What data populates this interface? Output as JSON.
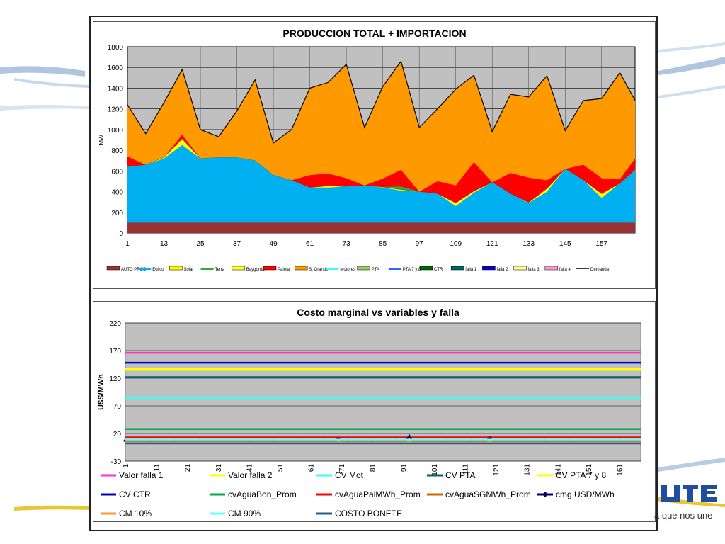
{
  "colors": {
    "auto_prod": "#993333",
    "eolico": "#00b0f0",
    "solar": "#ffff00",
    "terra": "#33aa33",
    "baygorria": "#ffff33",
    "palmar": "#ff0000",
    "s_grande": "#ff9900",
    "plot_bg": "#c0c0c0",
    "valor_falla_1": "#ff33cc",
    "valor_falla_2": "#ffff00",
    "cv_mot": "#33ffff",
    "cv_pta": "#006666",
    "cv_pta_7_8": "#ffff00",
    "cv_ctr": "#0000cc",
    "cvagua_bon": "#00aa44",
    "cvagua_pal": "#ff0000",
    "cvagua_sg": "#cc6600",
    "cmg": "#000066",
    "cm10": "#ff9933",
    "cm90": "#66ffff",
    "costo_bonete": "#1f5f99"
  },
  "brand": {
    "tagline": "a que nos une"
  },
  "chart_data": [
    {
      "type": "area",
      "title": "PRODUCCION TOTAL + IMPORTACION",
      "xlabel": "",
      "ylabel": "MW",
      "xlim": [
        1,
        168
      ],
      "ylim": [
        0,
        1800
      ],
      "yticks": [
        "0",
        "200",
        "400",
        "600",
        "800",
        "1000",
        "1200",
        "1400",
        "1600",
        "1800"
      ],
      "xticks": [
        "1",
        "13",
        "25",
        "37",
        "49",
        "61",
        "73",
        "85",
        "97",
        "109",
        "121",
        "133",
        "145",
        "157"
      ],
      "grid": true,
      "legend_position": "bottom",
      "legend": [
        "AUTO PROD",
        "Eolico",
        "Solar",
        "Terra",
        "Baygorria",
        "Palmar",
        "S. Grande",
        "Motores",
        "PTA",
        "PTA 7 y 8",
        "CTR",
        "falla 1",
        "falla 2",
        "falla 3",
        "falla 4",
        "Demanda"
      ],
      "x": [
        1,
        7,
        13,
        19,
        25,
        31,
        37,
        43,
        49,
        55,
        61,
        67,
        73,
        79,
        85,
        91,
        97,
        103,
        109,
        115,
        121,
        127,
        133,
        139,
        145,
        151,
        157,
        163,
        168
      ],
      "series": [
        {
          "name": "AUTO PROD",
          "values": [
            100,
            100,
            100,
            100,
            100,
            100,
            100,
            100,
            100,
            100,
            100,
            100,
            100,
            100,
            100,
            100,
            100,
            100,
            100,
            100,
            100,
            100,
            100,
            100,
            100,
            100,
            100,
            100,
            100
          ]
        },
        {
          "name": "Eolico",
          "values": [
            540,
            560,
            620,
            750,
            620,
            630,
            630,
            600,
            460,
            410,
            340,
            340,
            350,
            360,
            340,
            310,
            300,
            280,
            160,
            290,
            390,
            280,
            190,
            300,
            520,
            410,
            240,
            380,
            510
          ]
        },
        {
          "name": "Solar",
          "values": [
            0,
            0,
            10,
            60,
            0,
            0,
            0,
            0,
            0,
            0,
            0,
            15,
            0,
            0,
            5,
            10,
            0,
            0,
            30,
            15,
            0,
            0,
            5,
            30,
            0,
            0,
            40,
            0,
            0
          ]
        },
        {
          "name": "Terra",
          "values": [
            0,
            0,
            0,
            0,
            0,
            0,
            0,
            0,
            0,
            0,
            0,
            0,
            0,
            0,
            0,
            30,
            0,
            0,
            0,
            0,
            0,
            0,
            0,
            0,
            0,
            0,
            0,
            0,
            0
          ]
        },
        {
          "name": "Palmar",
          "values": [
            100,
            0,
            0,
            40,
            0,
            0,
            0,
            0,
            0,
            0,
            120,
            120,
            80,
            0,
            80,
            160,
            0,
            120,
            170,
            280,
            0,
            200,
            240,
            80,
            0,
            150,
            150,
            40,
            110
          ]
        },
        {
          "name": "S. Grande",
          "values": [
            500,
            300,
            530,
            630,
            280,
            200,
            450,
            780,
            310,
            490,
            840,
            880,
            1100,
            560,
            890,
            1050,
            620,
            700,
            930,
            840,
            490,
            760,
            780,
            1010,
            370,
            620,
            770,
            1030,
            560
          ]
        },
        {
          "name": "Demanda",
          "values": [
            1240,
            960,
            1260,
            1580,
            1000,
            930,
            1180,
            1480,
            870,
            1000,
            1400,
            1455,
            1630,
            1020,
            1415,
            1660,
            1020,
            1200,
            1390,
            1525,
            980,
            1340,
            1315,
            1520,
            990,
            1280,
            1300,
            1550,
            1280
          ]
        }
      ]
    },
    {
      "type": "line",
      "title": "Costo marginal  vs variables  y falla",
      "xlabel": "",
      "ylabel": "U$S/MWh",
      "xlim": [
        1,
        168
      ],
      "ylim": [
        -30,
        220
      ],
      "yticks": [
        "-30",
        "20",
        "70",
        "120",
        "170",
        "220"
      ],
      "xticks": [
        "1",
        "11",
        "21",
        "31",
        "41",
        "51",
        "61",
        "71",
        "81",
        "91",
        "101",
        "111",
        "121",
        "131",
        "141",
        "151",
        "161"
      ],
      "grid": true,
      "legend_position": "bottom",
      "series": [
        {
          "name": "Valor falla 1",
          "values": [
            166
          ]
        },
        {
          "name": "Valor falla 2",
          "values": [
            135
          ]
        },
        {
          "name": "CV Mot",
          "values": [
            84
          ]
        },
        {
          "name": "CV PTA",
          "values": [
            122
          ]
        },
        {
          "name": "CV PTA 7 y 8",
          "values": [
            137
          ]
        },
        {
          "name": "CV CTR",
          "values": [
            148
          ]
        },
        {
          "name": "cvAguaBon_Prom",
          "values": [
            28
          ]
        },
        {
          "name": "cvAguaPalMWh_Prom",
          "values": [
            13
          ]
        },
        {
          "name": "cvAguaSGMWh_Prom",
          "values": [
            6
          ]
        },
        {
          "name": "cmg USD/MWh",
          "x": [
            1,
            69,
            70,
            71,
            92,
            93,
            94,
            118,
            119,
            120,
            168
          ],
          "values": [
            7,
            7,
            12,
            7,
            7,
            16,
            7,
            7,
            13,
            7,
            7
          ]
        },
        {
          "name": "CM 10%",
          "values": [
            4
          ]
        },
        {
          "name": "CM 90%",
          "values": [
            9
          ]
        },
        {
          "name": "COSTO BONETE",
          "values": [
            2
          ]
        }
      ]
    }
  ]
}
